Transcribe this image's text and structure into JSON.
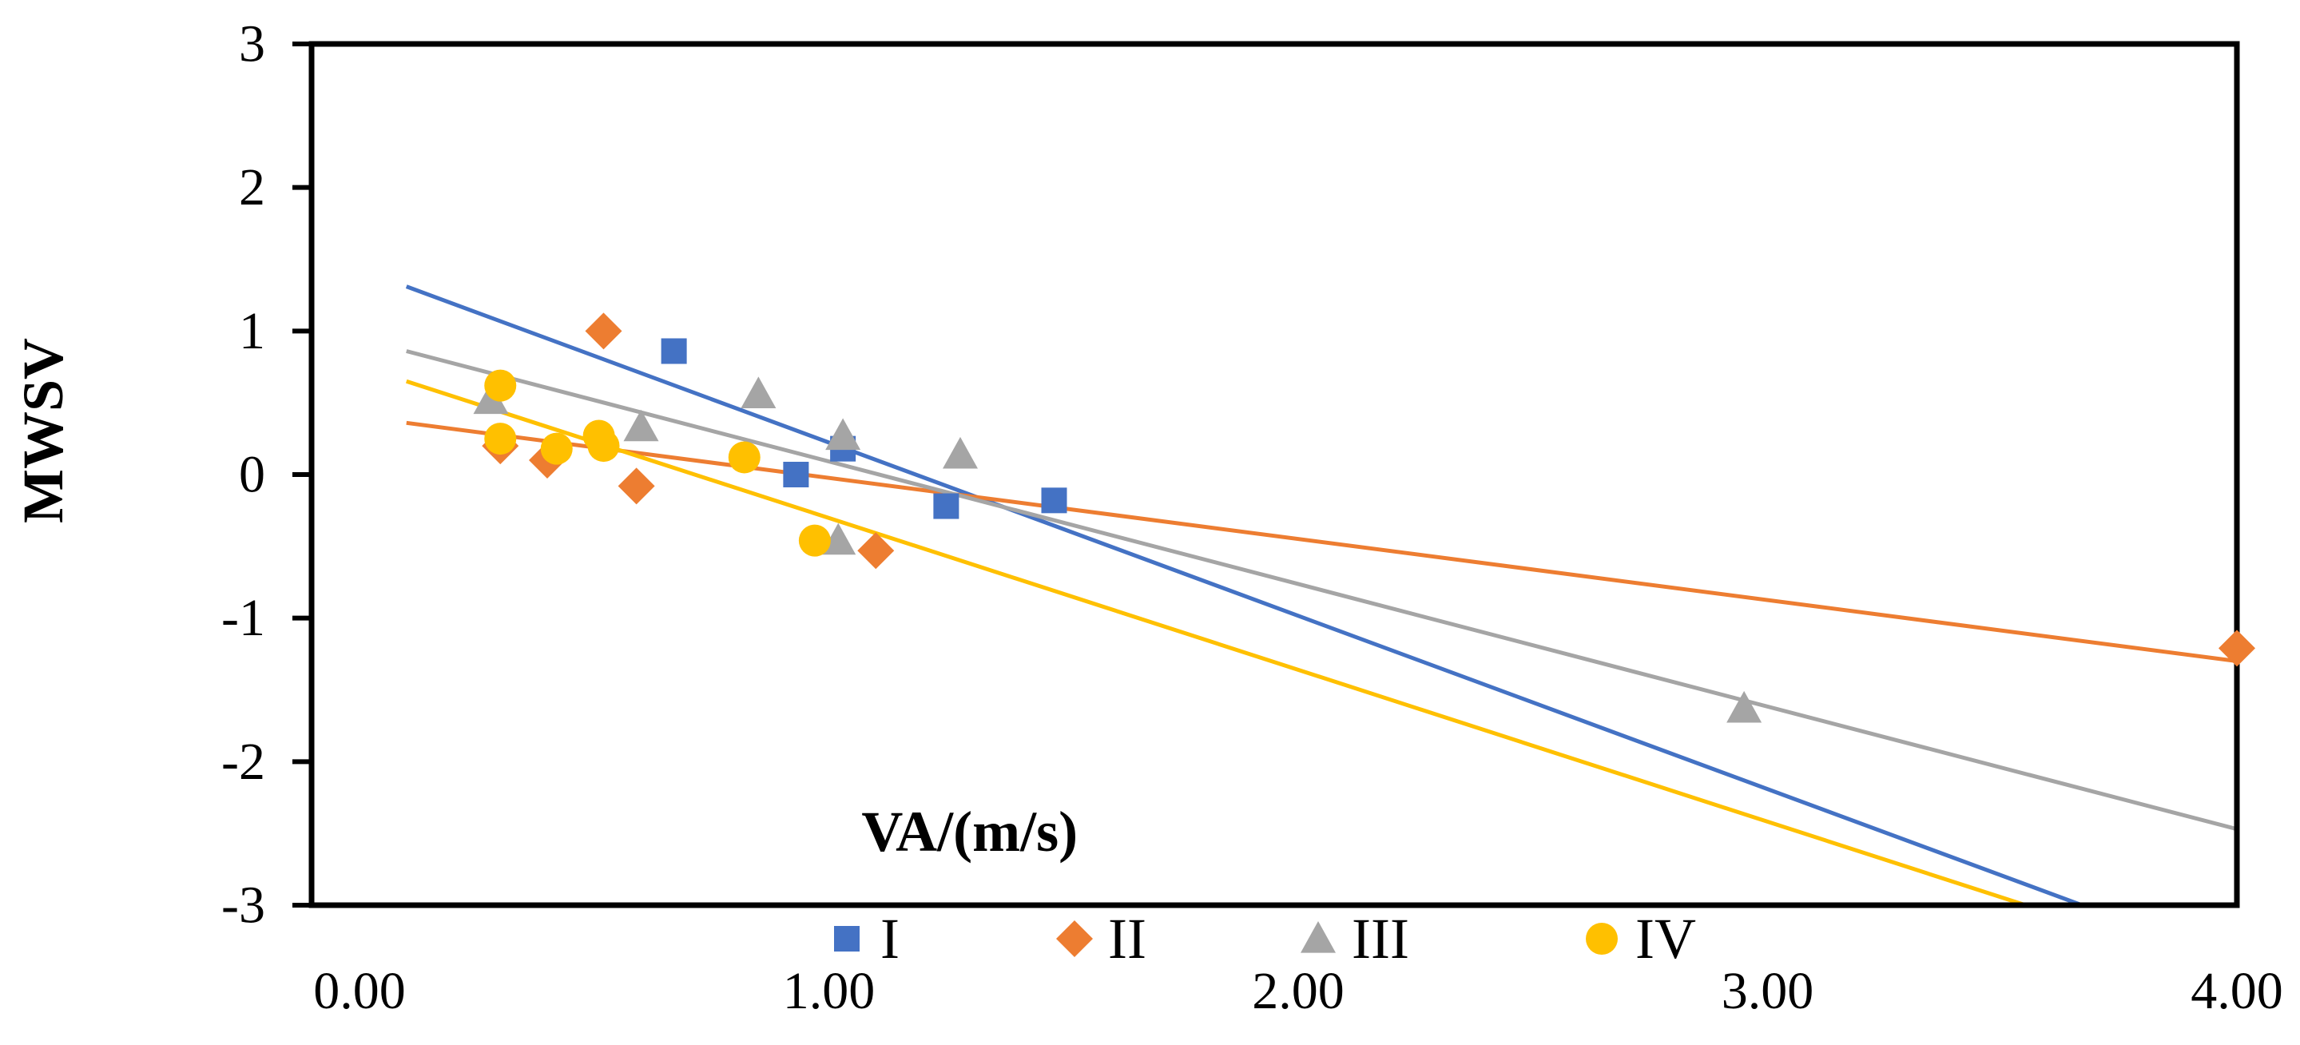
{
  "chart_data": {
    "type": "scatter",
    "title": "",
    "xlabel": "VA/(m/s)",
    "ylabel": "MWSV",
    "xlim": [
      0,
      4
    ],
    "ylim": [
      -3,
      3
    ],
    "x_ticks": [
      0,
      1,
      2,
      3,
      4
    ],
    "x_tick_labels": [
      "0.00",
      "1.00",
      "2.00",
      "3.00",
      "4.00"
    ],
    "y_ticks": [
      -3,
      -2,
      -1,
      0,
      1,
      2,
      3
    ],
    "y_tick_labels": [
      "-3",
      "-2",
      "-1",
      "0",
      "1",
      "2",
      "3"
    ],
    "grid": false,
    "legend_position": "bottom",
    "series": [
      {
        "name": "I",
        "color": "#4472C4",
        "marker": "square",
        "x": [
          0.67,
          0.93,
          1.03,
          1.25,
          1.48
        ],
        "y": [
          0.86,
          0.0,
          0.18,
          -0.22,
          -0.18
        ],
        "trend": {
          "x": [
            0.1,
            3.67
          ],
          "y": [
            1.31,
            -3.0
          ]
        }
      },
      {
        "name": "II",
        "color": "#ED7D31",
        "marker": "diamond",
        "x": [
          0.3,
          0.4,
          0.52,
          0.59,
          1.1,
          4.0
        ],
        "y": [
          0.2,
          0.1,
          1.0,
          -0.08,
          -0.53,
          -1.21
        ],
        "trend": {
          "x": [
            0.1,
            4.0
          ],
          "y": [
            0.36,
            -1.3
          ]
        }
      },
      {
        "name": "III",
        "color": "#A5A5A5",
        "marker": "triangle",
        "x": [
          0.28,
          0.6,
          0.85,
          1.02,
          1.03,
          1.28,
          2.95
        ],
        "y": [
          0.52,
          0.33,
          0.56,
          -0.46,
          0.27,
          0.14,
          -1.63
        ],
        "trend": {
          "x": [
            0.1,
            4.0
          ],
          "y": [
            0.86,
            -2.47
          ]
        }
      },
      {
        "name": "IV",
        "color": "#FFC000",
        "marker": "circle",
        "x": [
          0.3,
          0.3,
          0.42,
          0.51,
          0.52,
          0.82,
          0.97
        ],
        "y": [
          0.62,
          0.25,
          0.18,
          0.27,
          0.2,
          0.12,
          -0.46
        ],
        "trend": {
          "x": [
            0.1,
            3.55
          ],
          "y": [
            0.65,
            -3.0
          ]
        }
      }
    ]
  }
}
